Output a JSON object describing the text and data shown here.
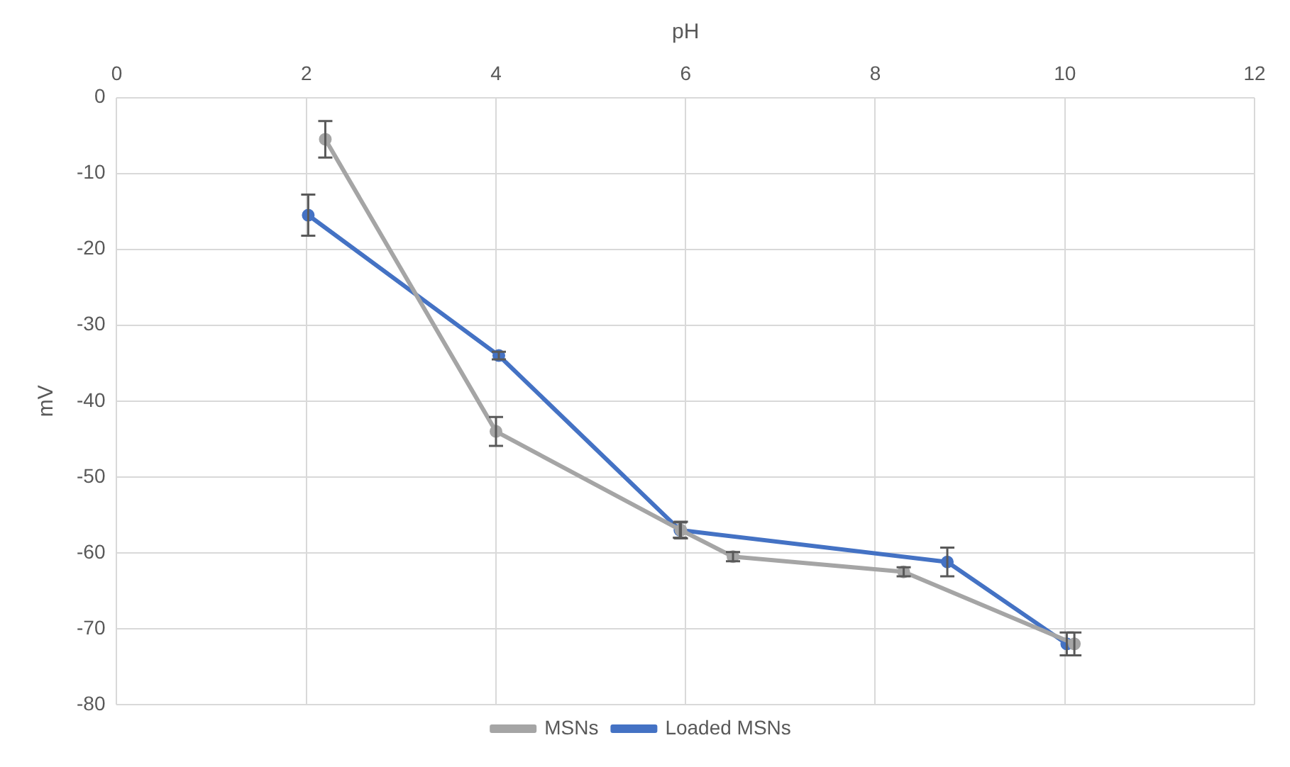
{
  "chart_data": {
    "type": "line",
    "xlabel": "pH",
    "ylabel": "mV",
    "xlim": [
      0,
      12
    ],
    "xticks": [
      0,
      2,
      4,
      6,
      8,
      10,
      12
    ],
    "ylim": [
      -80,
      0
    ],
    "yticks": [
      -80,
      -70,
      -60,
      -50,
      -40,
      -30,
      -20,
      -10,
      0
    ],
    "grid": true,
    "legend": "bottom",
    "marker": "circle",
    "line_style": "solid",
    "series": [
      {
        "name": "MSNs",
        "color": "#a5a5a5",
        "x": [
          2.2,
          4.0,
          5.95,
          6.5,
          8.3,
          10.1
        ],
        "values": [
          -5.5,
          -44,
          -57,
          -60.5,
          -62.5,
          -72
        ],
        "errors": [
          2.4,
          1.9,
          1.1,
          0.6,
          0.6,
          1.5
        ]
      },
      {
        "name": "Loaded MSNs",
        "color": "#4472c4",
        "x": [
          2.02,
          4.03,
          5.94,
          8.76,
          10.02
        ],
        "values": [
          -15.5,
          -34,
          -57,
          -61.2,
          -72
        ],
        "errors": [
          2.7,
          0.5,
          1.0,
          1.9,
          1.5
        ]
      }
    ]
  }
}
